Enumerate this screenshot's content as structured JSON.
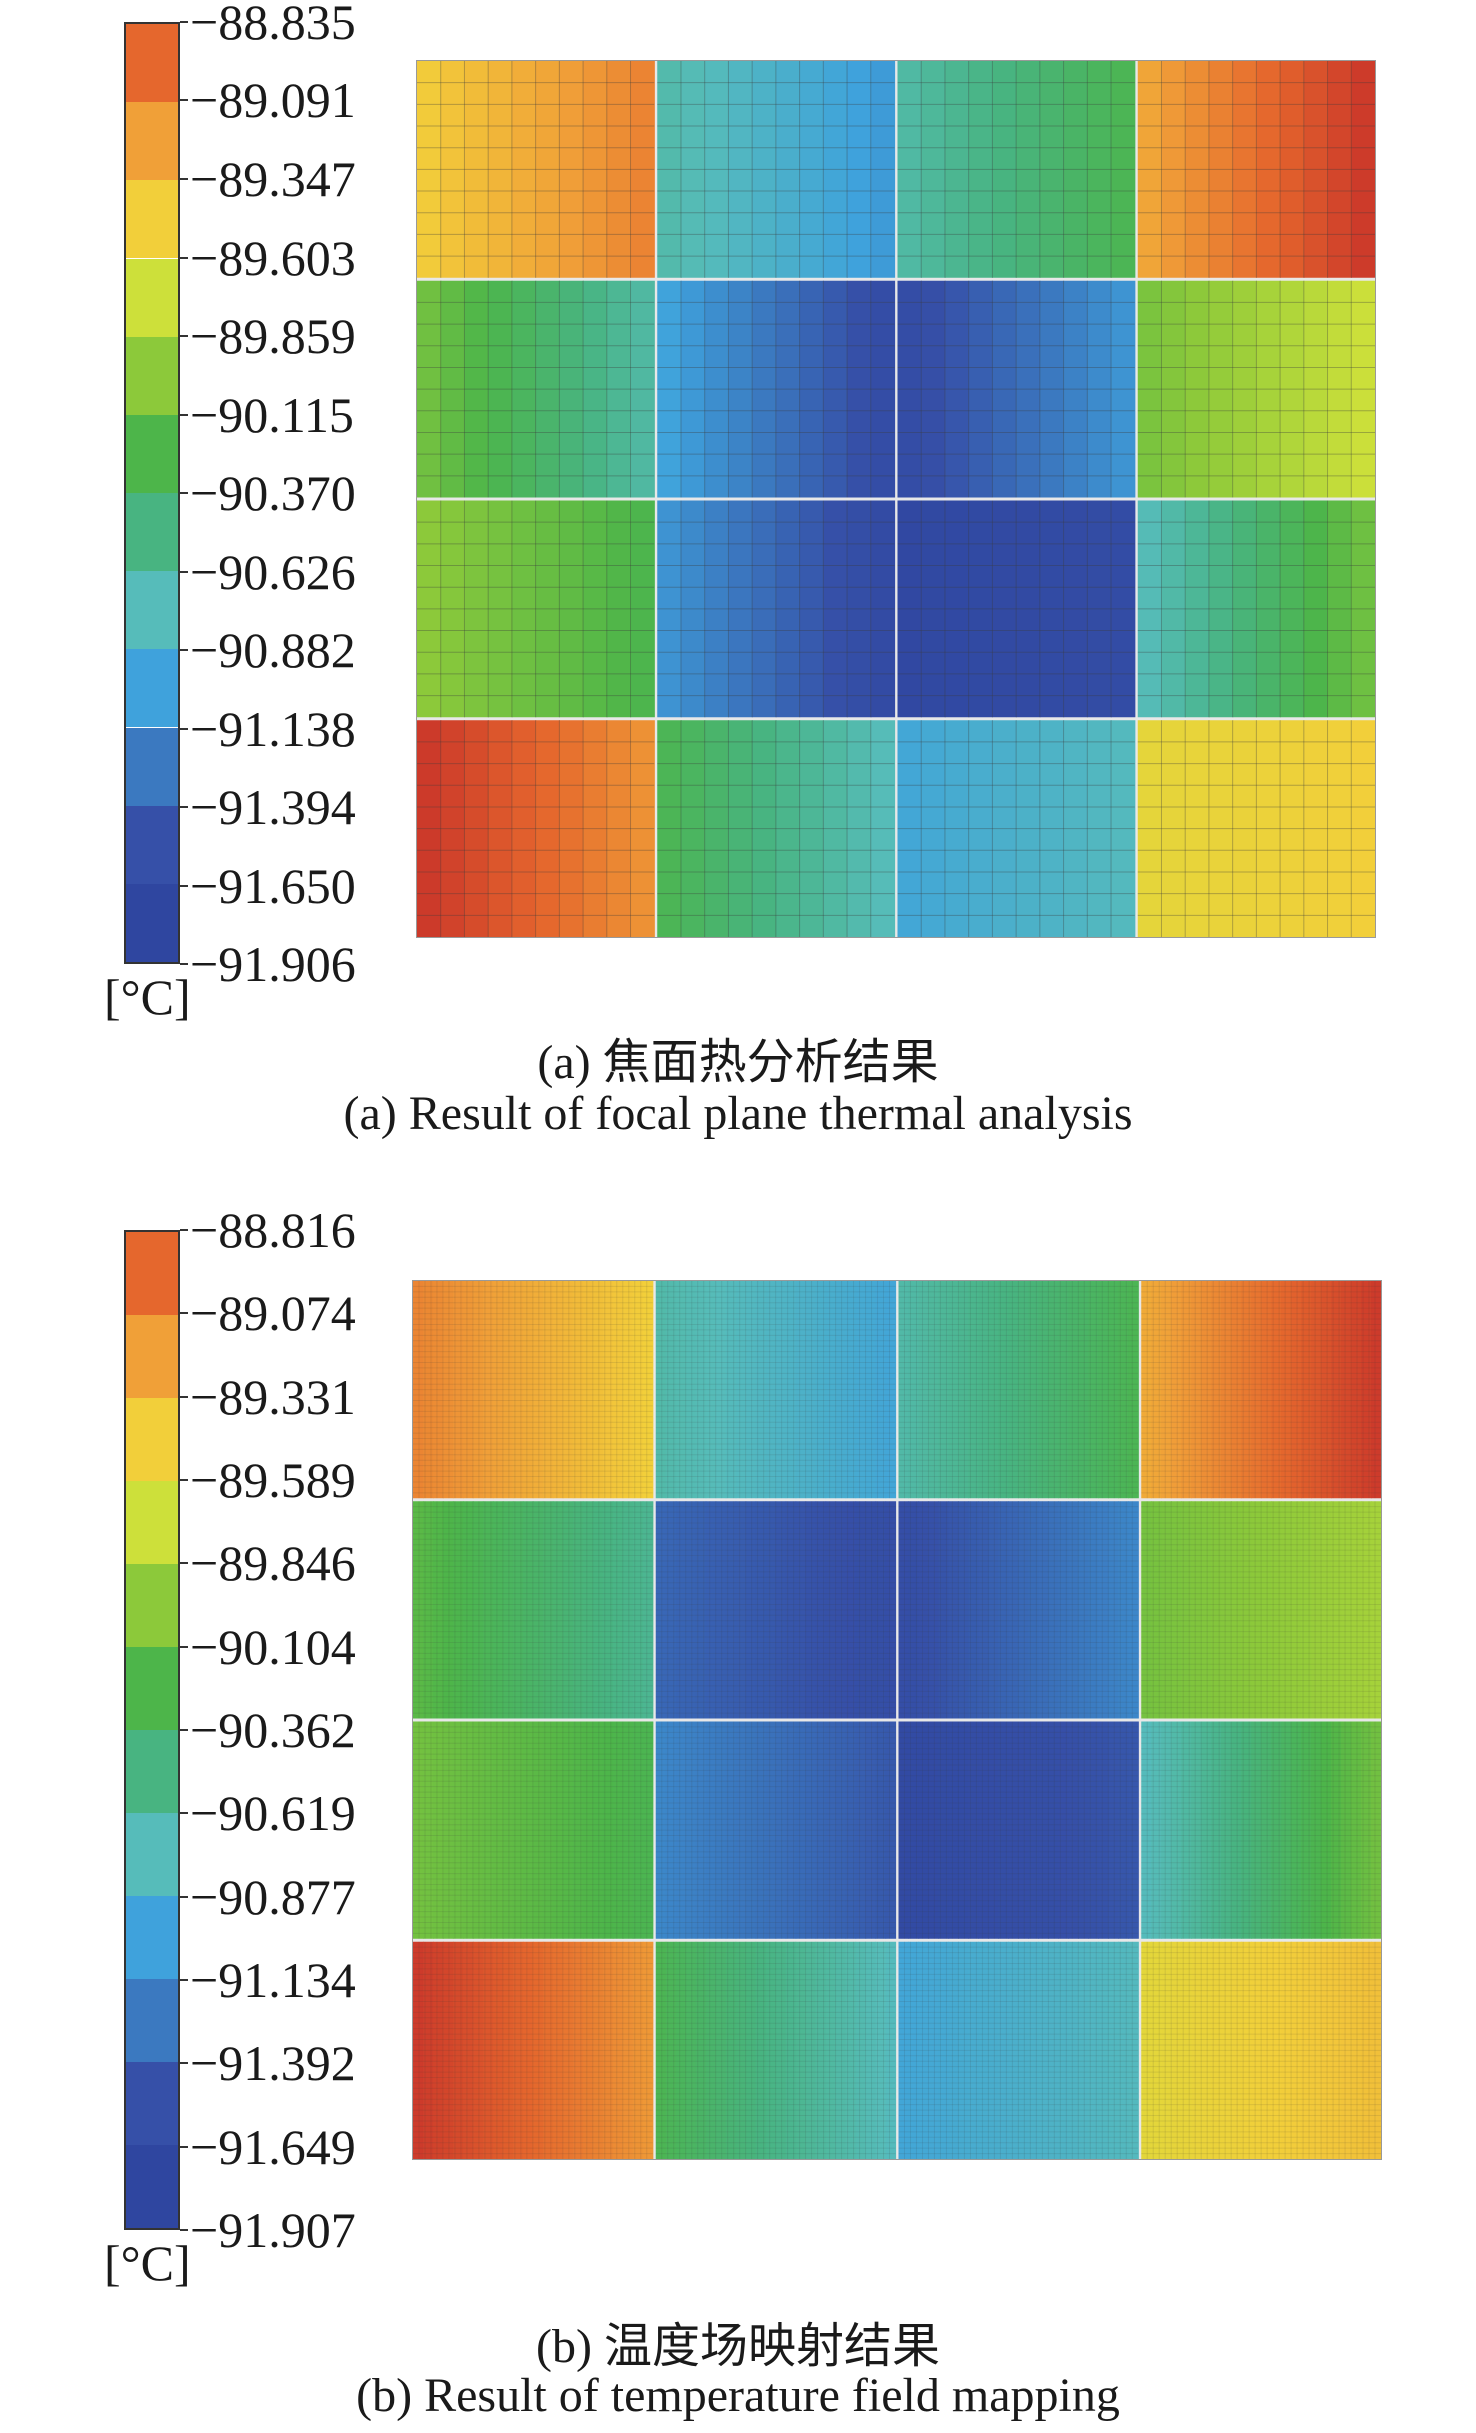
{
  "panels": [
    {
      "id": "a",
      "colorbar": {
        "ticks": [
          "−88.835",
          "−89.091",
          "−89.347",
          "−89.603",
          "−89.859",
          "−90.115",
          "−90.370",
          "−90.626",
          "−90.882",
          "−91.138",
          "−91.394",
          "−91.650",
          "−91.906"
        ],
        "unit": "[°C]"
      },
      "caption_zh": "(a) 焦面热分析结果",
      "caption_en": "(a) Result of focal plane thermal analysis"
    },
    {
      "id": "b",
      "colorbar": {
        "ticks": [
          "−88.816",
          "−89.074",
          "−89.331",
          "−89.589",
          "−89.846",
          "−90.104",
          "−90.362",
          "−90.619",
          "−90.877",
          "−91.134",
          "−91.392",
          "−91.649",
          "−91.907"
        ],
        "unit": "[°C]"
      },
      "caption_zh": "(b) 温度场映射结果",
      "caption_en": "(b) Result of temperature field mapping"
    }
  ],
  "colormap": [
    "#c8322a",
    "#e5672d",
    "#f0a038",
    "#f2cf3a",
    "#cde03a",
    "#8cc93a",
    "#4db54a",
    "#48b481",
    "#56bcba",
    "#3fa2dc",
    "#3b79c0",
    "#3650a8",
    "#2f46a0"
  ],
  "chart_data": [
    {
      "type": "heatmap",
      "title": "",
      "caption": "(a) Result of focal plane thermal analysis",
      "unit": "°C",
      "range": [
        -91.906,
        -88.835
      ],
      "colorbar_ticks": [
        -88.835,
        -89.091,
        -89.347,
        -89.603,
        -89.859,
        -90.115,
        -90.37,
        -90.626,
        -90.882,
        -91.138,
        -91.394,
        -91.65,
        -91.906
      ],
      "grid": "4 x 4 tiles, mesh lines visible",
      "tiles": [
        [
          [
            -89.6,
            -89.2
          ],
          [
            -90.8,
            -91.2
          ],
          [
            -90.8,
            -90.4
          ],
          [
            -89.4,
            -88.85
          ]
        ],
        [
          [
            -90.2,
            -90.8
          ],
          [
            -91.1,
            -91.75
          ],
          [
            -91.75,
            -91.2
          ],
          [
            -90.2,
            -89.85
          ]
        ],
        [
          [
            -90.1,
            -90.4
          ],
          [
            -91.2,
            -91.8
          ],
          [
            -91.85,
            -91.75
          ],
          [
            -90.9,
            -90.2
          ]
        ],
        [
          [
            -88.85,
            -89.3
          ],
          [
            -90.4,
            -90.9
          ],
          [
            -91.1,
            -90.9
          ],
          [
            -89.7,
            -89.6
          ]
        ]
      ]
    },
    {
      "type": "heatmap",
      "title": "",
      "caption": "(b) Result of temperature field mapping",
      "unit": "°C",
      "range": [
        -91.907,
        -88.816
      ],
      "colorbar_ticks": [
        -88.816,
        -89.074,
        -89.331,
        -89.589,
        -89.846,
        -90.104,
        -90.362,
        -90.619,
        -90.877,
        -91.134,
        -91.392,
        -91.649,
        -91.907
      ],
      "grid": "4 x 4 tiles, fine mesh",
      "tiles": [
        [
          [
            -89.2,
            -89.6
          ],
          [
            -90.8,
            -91.1
          ],
          [
            -90.8,
            -90.4
          ],
          [
            -89.4,
            -88.85
          ]
        ],
        [
          [
            -90.3,
            -90.7
          ],
          [
            -91.5,
            -91.7
          ],
          [
            -91.7,
            -91.3
          ],
          [
            -90.2,
            -90.0
          ]
        ],
        [
          [
            -90.2,
            -90.4
          ],
          [
            -91.3,
            -91.6
          ],
          [
            -91.8,
            -91.6
          ],
          [
            -90.9,
            -90.2
          ]
        ],
        [
          [
            -88.85,
            -89.3
          ],
          [
            -90.4,
            -90.9
          ],
          [
            -91.1,
            -90.9
          ],
          [
            -89.7,
            -89.5
          ]
        ]
      ]
    }
  ]
}
